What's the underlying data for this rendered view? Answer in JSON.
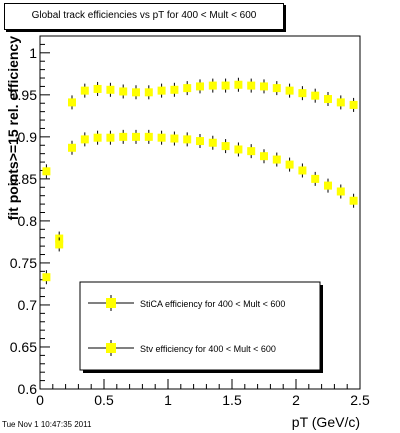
{
  "chart_data": {
    "type": "scatter",
    "title": "Global track efficiencies vs pT for 400 < Mult < 600",
    "xlabel": "pT (GeV/c)",
    "ylabel": "fit points>=15 rel. efficiency",
    "xlim": [
      0,
      2.5
    ],
    "ylim": [
      0.6,
      1.02
    ],
    "x_ticks": [
      "0",
      "0.5",
      "1",
      "1.5",
      "2",
      "2.5"
    ],
    "y_ticks": [
      "0.6",
      "0.65",
      "0.7",
      "0.75",
      "0.8",
      "0.85",
      "0.9",
      "0.95",
      "1"
    ],
    "legend_placement": "bottom-center",
    "marker_color": "#ffff00",
    "series": [
      {
        "name": "StiCA efficiency  for 400 < Mult < 600",
        "x": [
          0.05,
          0.15,
          0.25,
          0.35,
          0.45,
          0.55,
          0.65,
          0.75,
          0.85,
          0.95,
          1.05,
          1.15,
          1.25,
          1.35,
          1.45,
          1.55,
          1.65,
          1.75,
          1.85,
          1.95,
          2.05,
          2.15,
          2.25,
          2.35,
          2.45
        ],
        "y": [
          0.733,
          0.779,
          0.941,
          0.955,
          0.957,
          0.956,
          0.954,
          0.953,
          0.953,
          0.955,
          0.956,
          0.958,
          0.96,
          0.961,
          0.961,
          0.962,
          0.961,
          0.96,
          0.958,
          0.955,
          0.952,
          0.949,
          0.945,
          0.941,
          0.938
        ]
      },
      {
        "name": "Stv efficiency  for 400 < Mult < 600",
        "x": [
          0.05,
          0.15,
          0.25,
          0.35,
          0.45,
          0.55,
          0.65,
          0.75,
          0.85,
          0.95,
          1.05,
          1.15,
          1.25,
          1.35,
          1.45,
          1.55,
          1.65,
          1.75,
          1.85,
          1.95,
          2.05,
          2.15,
          2.25,
          2.35,
          2.45
        ],
        "y": [
          0.859,
          0.772,
          0.887,
          0.897,
          0.899,
          0.899,
          0.9,
          0.9,
          0.9,
          0.899,
          0.898,
          0.897,
          0.895,
          0.893,
          0.889,
          0.885,
          0.883,
          0.877,
          0.873,
          0.867,
          0.86,
          0.85,
          0.842,
          0.835,
          0.824
        ]
      }
    ]
  },
  "footer": "Tue Nov  1 10:47:35 2011"
}
